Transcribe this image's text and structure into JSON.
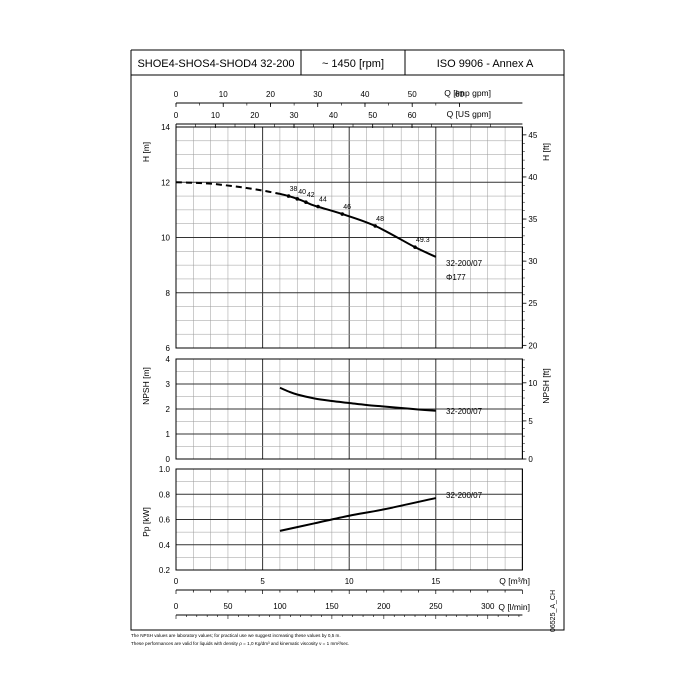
{
  "header": {
    "model": "SHOE4-SHOS4-SHOD4 32-200",
    "speed": "~ 1450 [rpm]",
    "standard": "ISO 9906 - Annex A"
  },
  "chart_data": [
    {
      "type": "line",
      "name": "head",
      "ylabel_left": "H [m]",
      "ylabel_right": "H [ft]",
      "ylim": [
        6,
        14
      ],
      "yticks": [
        6,
        8,
        10,
        12,
        14
      ],
      "ylim_right": [
        20,
        45
      ],
      "yticks_right": [
        20,
        25,
        30,
        35,
        40,
        45
      ],
      "top_axes": [
        {
          "label": "Q [Imp gpm]",
          "range": [
            0,
            60
          ],
          "ticks": [
            0,
            10,
            20,
            30,
            40,
            50,
            60
          ]
        },
        {
          "label": "Q [US gpm]",
          "range": [
            0,
            60
          ],
          "ticks": [
            0,
            10,
            20,
            30,
            40,
            50,
            60
          ]
        }
      ],
      "series": [
        {
          "name": "32-200/07",
          "sub_label": "Φ177",
          "dashed_x": [
            0,
            1,
            2,
            3,
            4,
            5,
            6
          ],
          "dashed_y": [
            12.0,
            11.98,
            11.95,
            11.88,
            11.8,
            11.7,
            11.58
          ],
          "x": [
            6.5,
            7.0,
            7.5,
            8.0,
            9.5,
            11.5,
            13.8,
            15.0
          ],
          "y": [
            11.5,
            11.4,
            11.28,
            11.15,
            10.87,
            10.42,
            9.65,
            9.3
          ]
        }
      ],
      "points": [
        {
          "x": 6.5,
          "y": 11.5,
          "label": "38"
        },
        {
          "x": 7.0,
          "y": 11.4,
          "label": "40"
        },
        {
          "x": 7.5,
          "y": 11.28,
          "label": "42"
        },
        {
          "x": 8.2,
          "y": 11.12,
          "label": "44"
        },
        {
          "x": 9.6,
          "y": 10.85,
          "label": "46"
        },
        {
          "x": 11.5,
          "y": 10.42,
          "label": "48"
        },
        {
          "x": 13.8,
          "y": 9.65,
          "label": "49.3"
        }
      ]
    },
    {
      "type": "line",
      "name": "npsh",
      "ylabel_left": "NPSH [m]",
      "ylabel_right": "NPSH [ft]",
      "ylim": [
        0,
        4
      ],
      "yticks": [
        0,
        1,
        2,
        3,
        4
      ],
      "yticks_right": [
        0,
        5,
        10
      ],
      "series": [
        {
          "name": "32-200/07",
          "x": [
            6,
            6.5,
            7,
            8,
            9,
            10,
            11,
            12,
            13,
            14,
            15
          ],
          "y": [
            2.85,
            2.7,
            2.58,
            2.42,
            2.32,
            2.24,
            2.16,
            2.1,
            2.04,
            1.98,
            1.93
          ]
        }
      ]
    },
    {
      "type": "line",
      "name": "power",
      "ylabel_left": "Pp [kW]",
      "ylim": [
        0.2,
        1.0
      ],
      "yticks": [
        0.2,
        0.4,
        0.6,
        0.8,
        1.0
      ],
      "ytick_labels": [
        "0.2",
        "0.4",
        "0.6",
        "0.8",
        "1.0"
      ],
      "series": [
        {
          "name": "32-200/07",
          "x": [
            6,
            8,
            10,
            12,
            15
          ],
          "y": [
            0.51,
            0.57,
            0.63,
            0.68,
            0.77
          ]
        }
      ]
    }
  ],
  "x_axes": {
    "primary": {
      "label": "Q [m³/h]",
      "range": [
        0,
        20
      ],
      "ticks": [
        0,
        5,
        10,
        15
      ]
    },
    "secondary": {
      "label": "Q [l/min]",
      "range": [
        0,
        333.33
      ],
      "ticks": [
        0,
        50,
        100,
        150,
        200,
        250,
        300
      ]
    }
  },
  "footer": {
    "code": "06525_A_CH",
    "note1": "The NPSH values are laboratory values; for practical use we suggest increasing these values by 0,5 m.",
    "note2": "These performances are valid for liquids with density ρ = 1,0 Kg/dm³ and kinematic viscosity ν = 1 mm²/sec."
  }
}
